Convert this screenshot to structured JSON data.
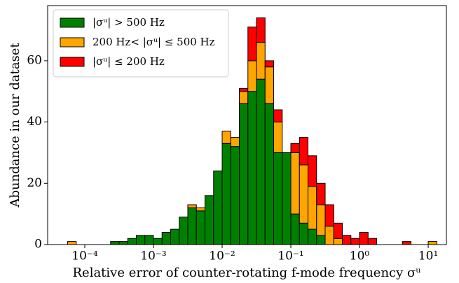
{
  "chart_data": {
    "type": "histogram",
    "stacked": true,
    "xscale": "log",
    "xlabel": "Relative error of counter-rotating f-mode frequency σᵘ",
    "ylabel": "Abundance in our dataset",
    "bins": [
      5.623e-05,
      7.499e-05,
      0.0001,
      0.0001334,
      0.0001778,
      0.0002371,
      0.0003162,
      0.0004217,
      0.0005623,
      0.0007499,
      0.001,
      0.001334,
      0.001778,
      0.002371,
      0.003162,
      0.004217,
      0.005623,
      0.007499,
      0.01,
      0.01334,
      0.01778,
      0.02371,
      0.03162,
      0.04217,
      0.05623,
      0.07499,
      0.1,
      0.1334,
      0.1778,
      0.2371,
      0.3162,
      0.4217,
      0.5623,
      0.7499,
      1,
      1.334,
      1.778,
      2.371,
      3.162,
      4.217,
      5.623,
      7.499,
      10,
      13.34
    ],
    "series": [
      {
        "name": "|σᵘ| > 500 Hz",
        "color": "#008000",
        "values": [
          0,
          0,
          0,
          0,
          0,
          1,
          1,
          2,
          3,
          3,
          2,
          4,
          5,
          9,
          12,
          11,
          16,
          24,
          33,
          32,
          46,
          50,
          54,
          46,
          30,
          30,
          10,
          7,
          5,
          3,
          0,
          0,
          0,
          0,
          0,
          0,
          0,
          0,
          0,
          0,
          0,
          0,
          0
        ]
      },
      {
        "name": "200 Hz< |σᵘ| ≤ 500 Hz",
        "color": "#ffa500",
        "values": [
          1,
          0,
          0,
          0,
          0,
          0,
          0,
          0,
          0,
          0,
          0,
          0,
          0,
          0,
          1,
          1,
          0,
          0,
          4,
          3,
          4,
          10,
          12,
          12,
          10,
          0,
          20,
          19,
          14,
          10,
          6,
          2,
          0,
          0,
          0,
          0,
          0,
          0,
          0,
          0,
          0,
          0,
          1
        ]
      },
      {
        "name": "|σᵘ| ≤ 200 Hz",
        "color": "#ff0000",
        "values": [
          0,
          0,
          0,
          0,
          0,
          0,
          0,
          0,
          0,
          0,
          0,
          0,
          0,
          0,
          0,
          0,
          0,
          0,
          0,
          0,
          1,
          11,
          8,
          2,
          4,
          0,
          3,
          9,
          10,
          7,
          7,
          5,
          3,
          2,
          4,
          2,
          0,
          0,
          0,
          1,
          0,
          0,
          0
        ]
      }
    ],
    "xlim": [
      2.88e-05,
      18.4
    ],
    "ylim": [
      0,
      78
    ],
    "xticks": [
      {
        "value": 0.0001,
        "label": "10⁻⁴"
      },
      {
        "value": 0.001,
        "label": "10⁻³"
      },
      {
        "value": 0.01,
        "label": "10⁻²"
      },
      {
        "value": 0.1,
        "label": "10⁻¹"
      },
      {
        "value": 1,
        "label": "10⁰"
      },
      {
        "value": 10,
        "label": "10¹"
      }
    ],
    "yticks": [
      0,
      20,
      40,
      60
    ],
    "legend": "upper left",
    "edgecolor": "#000000"
  }
}
